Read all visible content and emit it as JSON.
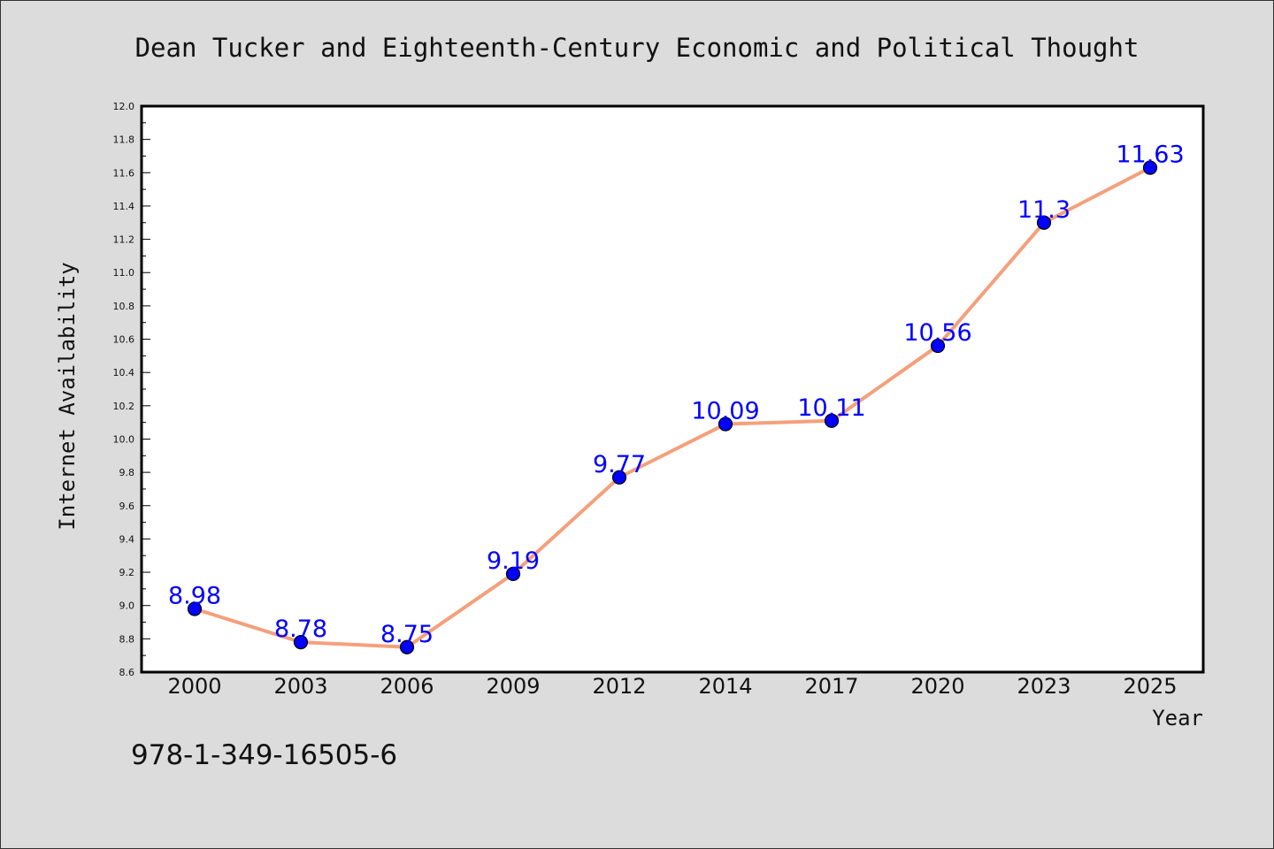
{
  "chart_data": {
    "type": "line",
    "title": "Dean Tucker and Eighteenth-Century Economic and Political Thought",
    "xlabel": "Year",
    "ylabel": "Internet Availability",
    "categories": [
      "2000",
      "2003",
      "2006",
      "2009",
      "2012",
      "2014",
      "2017",
      "2020",
      "2023",
      "2025"
    ],
    "series": [
      {
        "values": [
          8.98,
          8.78,
          8.75,
          9.19,
          9.77,
          10.09,
          10.11,
          10.56,
          11.3,
          11.63
        ]
      }
    ],
    "data_labels": [
      "8.98",
      "8.78",
      "8.75",
      "9.19",
      "9.77",
      "10.09",
      "10.11",
      "10.56",
      "11.3",
      "11.63"
    ],
    "ylim": [
      8.6,
      12.0
    ],
    "yticks": [
      "8.6",
      "8.8",
      "9.0",
      "9.2",
      "9.4",
      "9.6",
      "9.8",
      "10.0",
      "10.2",
      "10.4",
      "10.6",
      "10.8",
      "11.0",
      "11.2",
      "11.4",
      "11.6",
      "11.8",
      "12.0"
    ],
    "grid": false,
    "line_color": "#f4a07c",
    "marker_color": "#0000ff",
    "label_color": "#0000ff"
  },
  "footer": {
    "isbn": "978-1-349-16505-6"
  }
}
